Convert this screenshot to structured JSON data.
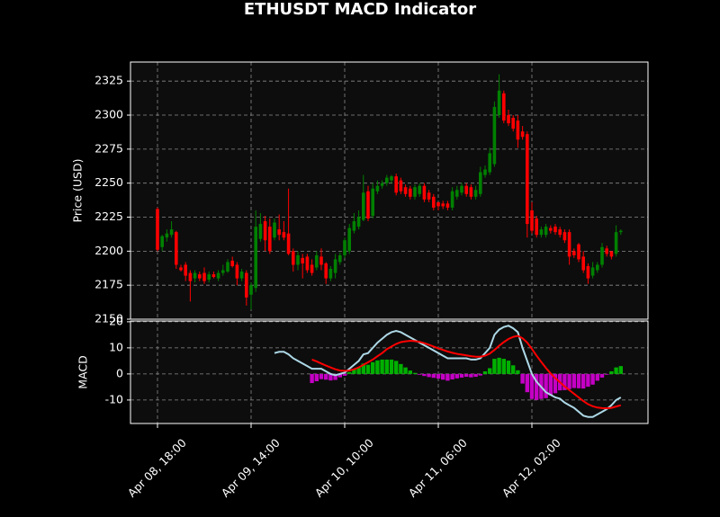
{
  "chart_data": [
    {
      "type": "candlestick",
      "title": "ETHUSDT MACD Indicator",
      "ylabel": "Price (USD)",
      "x": [
        "Apr 08, 18:00",
        "Apr 08, 19:00",
        "Apr 08, 20:00",
        "Apr 08, 21:00",
        "Apr 08, 22:00",
        "Apr 08, 23:00",
        "Apr 09, 00:00",
        "Apr 09, 01:00",
        "Apr 09, 02:00",
        "Apr 09, 03:00",
        "Apr 09, 04:00",
        "Apr 09, 05:00",
        "Apr 09, 06:00",
        "Apr 09, 07:00",
        "Apr 09, 08:00",
        "Apr 09, 09:00",
        "Apr 09, 10:00",
        "Apr 09, 11:00",
        "Apr 09, 12:00",
        "Apr 09, 13:00",
        "Apr 09, 14:00",
        "Apr 09, 15:00",
        "Apr 09, 16:00",
        "Apr 09, 17:00",
        "Apr 09, 18:00",
        "Apr 09, 19:00",
        "Apr 09, 20:00",
        "Apr 09, 21:00",
        "Apr 09, 22:00",
        "Apr 09, 23:00",
        "Apr 10, 00:00",
        "Apr 10, 01:00",
        "Apr 10, 02:00",
        "Apr 10, 03:00",
        "Apr 10, 04:00",
        "Apr 10, 05:00",
        "Apr 10, 06:00",
        "Apr 10, 07:00",
        "Apr 10, 08:00",
        "Apr 10, 09:00",
        "Apr 10, 10:00",
        "Apr 10, 11:00",
        "Apr 10, 12:00",
        "Apr 10, 13:00",
        "Apr 10, 14:00",
        "Apr 10, 15:00",
        "Apr 10, 16:00",
        "Apr 10, 17:00",
        "Apr 10, 18:00",
        "Apr 10, 19:00",
        "Apr 10, 20:00",
        "Apr 10, 21:00",
        "Apr 10, 22:00",
        "Apr 10, 23:00",
        "Apr 11, 00:00",
        "Apr 11, 01:00",
        "Apr 11, 02:00",
        "Apr 11, 03:00",
        "Apr 11, 04:00",
        "Apr 11, 05:00",
        "Apr 11, 06:00",
        "Apr 11, 07:00",
        "Apr 11, 08:00",
        "Apr 11, 09:00",
        "Apr 11, 10:00",
        "Apr 11, 11:00",
        "Apr 11, 12:00",
        "Apr 11, 13:00",
        "Apr 11, 14:00",
        "Apr 11, 15:00",
        "Apr 11, 16:00",
        "Apr 11, 17:00",
        "Apr 11, 18:00",
        "Apr 11, 19:00",
        "Apr 11, 20:00",
        "Apr 11, 21:00",
        "Apr 11, 22:00",
        "Apr 11, 23:00",
        "Apr 12, 00:00",
        "Apr 12, 01:00",
        "Apr 12, 02:00",
        "Apr 12, 03:00",
        "Apr 12, 04:00",
        "Apr 12, 05:00",
        "Apr 12, 06:00",
        "Apr 12, 07:00",
        "Apr 12, 08:00",
        "Apr 12, 09:00",
        "Apr 12, 10:00",
        "Apr 12, 11:00",
        "Apr 12, 12:00",
        "Apr 12, 13:00",
        "Apr 12, 14:00",
        "Apr 12, 15:00",
        "Apr 12, 16:00",
        "Apr 12, 17:00",
        "Apr 12, 18:00",
        "Apr 12, 19:00",
        "Apr 12, 20:00",
        "Apr 12, 21:00"
      ],
      "open": [
        2231,
        2203,
        2210,
        2212,
        2214,
        2188,
        2190,
        2184,
        2180,
        2183,
        2184,
        2179,
        2183,
        2180,
        2184,
        2185,
        2193,
        2190,
        2180,
        2184,
        2168,
        2173,
        2209,
        2222,
        2218,
        2210,
        2216,
        2214,
        2213,
        2200,
        2190,
        2195,
        2196,
        2190,
        2188,
        2196,
        2191,
        2180,
        2184,
        2192,
        2197,
        2200,
        2215,
        2218,
        2223,
        2244,
        2226,
        2244,
        2248,
        2250,
        2252,
        2255,
        2252,
        2247,
        2246,
        2240,
        2242,
        2248,
        2243,
        2240,
        2236,
        2235,
        2235,
        2232,
        2240,
        2243,
        2248,
        2247,
        2240,
        2242,
        2256,
        2258,
        2264,
        2300,
        2316,
        2300,
        2298,
        2296,
        2288,
        2286,
        2230,
        2224,
        2212,
        2212,
        2217,
        2218,
        2216,
        2214,
        2214,
        2200,
        2205,
        2196,
        2189,
        2182,
        2186,
        2190,
        2202,
        2200,
        2198,
        2214
      ],
      "high": [
        2232,
        2212,
        2216,
        2222,
        2215,
        2190,
        2192,
        2186,
        2186,
        2185,
        2188,
        2185,
        2185,
        2186,
        2190,
        2194,
        2196,
        2192,
        2187,
        2186,
        2177,
        2230,
        2228,
        2226,
        2224,
        2224,
        2227,
        2222,
        2246,
        2202,
        2200,
        2198,
        2198,
        2194,
        2200,
        2202,
        2192,
        2189,
        2198,
        2199,
        2210,
        2220,
        2228,
        2230,
        2256,
        2248,
        2250,
        2252,
        2252,
        2256,
        2256,
        2257,
        2254,
        2249,
        2248,
        2249,
        2250,
        2250,
        2245,
        2242,
        2236,
        2237,
        2237,
        2247,
        2248,
        2250,
        2250,
        2249,
        2248,
        2262,
        2263,
        2276,
        2310,
        2330,
        2318,
        2304,
        2300,
        2300,
        2292,
        2288,
        2236,
        2226,
        2218,
        2220,
        2219,
        2220,
        2218,
        2216,
        2216,
        2202,
        2206,
        2200,
        2191,
        2192,
        2192,
        2206,
        2204,
        2200,
        2219,
        2216
      ],
      "low": [
        2200,
        2200,
        2207,
        2210,
        2187,
        2185,
        2178,
        2163,
        2177,
        2178,
        2176,
        2177,
        2180,
        2178,
        2182,
        2184,
        2188,
        2175,
        2178,
        2160,
        2157,
        2170,
        2207,
        2200,
        2198,
        2208,
        2208,
        2208,
        2197,
        2185,
        2186,
        2180,
        2184,
        2182,
        2186,
        2186,
        2176,
        2178,
        2180,
        2190,
        2195,
        2198,
        2213,
        2216,
        2222,
        2222,
        2224,
        2242,
        2246,
        2248,
        2250,
        2241,
        2242,
        2240,
        2238,
        2238,
        2240,
        2236,
        2236,
        2230,
        2230,
        2231,
        2230,
        2230,
        2238,
        2241,
        2240,
        2238,
        2238,
        2240,
        2254,
        2256,
        2262,
        2298,
        2294,
        2292,
        2288,
        2276,
        2282,
        2210,
        2213,
        2210,
        2210,
        2210,
        2213,
        2212,
        2210,
        2206,
        2190,
        2195,
        2192,
        2184,
        2176,
        2180,
        2184,
        2188,
        2196,
        2194,
        2196,
        2212
      ],
      "close": [
        2201,
        2211,
        2213,
        2216,
        2190,
        2186,
        2182,
        2178,
        2184,
        2180,
        2178,
        2183,
        2181,
        2184,
        2186,
        2192,
        2189,
        2180,
        2185,
        2166,
        2175,
        2218,
        2220,
        2208,
        2200,
        2221,
        2212,
        2210,
        2198,
        2190,
        2197,
        2191,
        2186,
        2184,
        2197,
        2190,
        2180,
        2187,
        2194,
        2197,
        2208,
        2217,
        2222,
        2225,
        2243,
        2224,
        2246,
        2248,
        2250,
        2254,
        2255,
        2243,
        2244,
        2242,
        2240,
        2247,
        2248,
        2238,
        2238,
        2232,
        2233,
        2233,
        2232,
        2244,
        2245,
        2248,
        2242,
        2240,
        2245,
        2258,
        2260,
        2272,
        2306,
        2318,
        2296,
        2294,
        2290,
        2282,
        2284,
        2220,
        2215,
        2212,
        2216,
        2218,
        2215,
        2214,
        2212,
        2208,
        2196,
        2197,
        2194,
        2186,
        2180,
        2188,
        2190,
        2203,
        2198,
        2196,
        2214,
        2215
      ],
      "up_color": "#008000",
      "down_color": "#ff0000",
      "ylim": [
        2150,
        2339
      ],
      "yticks": [
        2150,
        2175,
        2200,
        2225,
        2250,
        2275,
        2300,
        2325
      ],
      "grid": true
    },
    {
      "type": "macd",
      "ylabel": "MACD",
      "series": [
        {
          "color": "#add8e6",
          "values": [
            null,
            null,
            null,
            null,
            null,
            null,
            null,
            null,
            null,
            null,
            null,
            null,
            null,
            null,
            null,
            null,
            null,
            null,
            null,
            null,
            null,
            null,
            null,
            null,
            null,
            8,
            8.5,
            8.5,
            7.5,
            6,
            5,
            4,
            3,
            2,
            2,
            2,
            1,
            0,
            -0.5,
            0,
            0.5,
            2,
            3.5,
            5,
            7.5,
            8,
            10,
            12,
            13.5,
            15,
            16,
            16.5,
            16,
            15,
            14,
            13,
            12,
            11,
            10,
            9,
            8,
            7,
            6,
            6,
            6,
            6,
            6,
            5.5,
            5.5,
            6,
            8,
            10,
            15,
            17,
            18,
            18.5,
            17.5,
            16,
            10,
            5,
            0,
            -3,
            -5,
            -7,
            -8,
            -9,
            -9.5,
            -11,
            -12,
            -13,
            -14.5,
            -16,
            -16.5,
            -16.5,
            -15.5,
            -14.5,
            -13.5,
            -12,
            -10,
            -9
          ]
        },
        {
          "color": "#ff0000",
          "values": [
            null,
            null,
            null,
            null,
            null,
            null,
            null,
            null,
            null,
            null,
            null,
            null,
            null,
            null,
            null,
            null,
            null,
            null,
            null,
            null,
            null,
            null,
            null,
            null,
            null,
            null,
            null,
            null,
            null,
            null,
            null,
            null,
            null,
            5.5,
            4.8,
            4,
            3.2,
            2.5,
            1.8,
            1.3,
            1.2,
            1.3,
            1.8,
            2.5,
            3.5,
            4.5,
            5.5,
            6.8,
            8,
            9.5,
            10.5,
            11.5,
            12.2,
            12.5,
            12.7,
            12.6,
            12.3,
            11.8,
            11.2,
            10.5,
            9.8,
            9.2,
            8.6,
            8.1,
            7.7,
            7.4,
            7.1,
            6.8,
            6.6,
            6.6,
            7,
            7.8,
            9.2,
            10.8,
            12.2,
            13.4,
            14.2,
            14.6,
            13.7,
            12,
            9.6,
            7,
            4.6,
            2.3,
            0.2,
            -1.6,
            -3.2,
            -4.8,
            -6.2,
            -7.6,
            -9,
            -10.4,
            -11.6,
            -12.4,
            -12.9,
            -13.1,
            -13.2,
            -13,
            -12.5,
            -12
          ]
        }
      ],
      "histogram": {
        "positive_color": "#00b000",
        "negative_color": "#c400c4",
        "values": [
          null,
          null,
          null,
          null,
          null,
          null,
          null,
          null,
          null,
          null,
          null,
          null,
          null,
          null,
          null,
          null,
          null,
          null,
          null,
          null,
          null,
          null,
          null,
          null,
          null,
          null,
          null,
          null,
          null,
          null,
          null,
          null,
          null,
          -3.5,
          -2.8,
          -2,
          -2.2,
          -2.5,
          -2.3,
          -1.3,
          -0.7,
          0.7,
          1.7,
          2.5,
          4,
          3.5,
          4.5,
          5.2,
          5.5,
          5.5,
          5.5,
          5,
          3.8,
          2.5,
          1.3,
          0.4,
          -0.3,
          -0.8,
          -1.2,
          -1.5,
          -1.8,
          -2.2,
          -2.6,
          -2.1,
          -1.7,
          -1.4,
          -1.1,
          -1.3,
          -1.1,
          -0.6,
          1,
          2.2,
          5.8,
          6.2,
          5.8,
          5.1,
          3.3,
          1.4,
          -3.7,
          -7,
          -9.6,
          -10,
          -9.6,
          -9.3,
          -8.2,
          -7.4,
          -6.3,
          -6.2,
          -5.8,
          -5.4,
          -5.5,
          -5.6,
          -4.9,
          -4.1,
          -2.6,
          -1.4,
          -0.3,
          1,
          2.5,
          3
        ]
      },
      "xticks": [
        "Apr 08, 18:00",
        "Apr 09, 14:00",
        "Apr 10, 10:00",
        "Apr 11, 06:00",
        "Apr 12, 02:00"
      ],
      "ylim": [
        -19,
        20.3
      ],
      "yticks": [
        -10,
        0,
        10,
        20
      ],
      "grid": true
    }
  ]
}
